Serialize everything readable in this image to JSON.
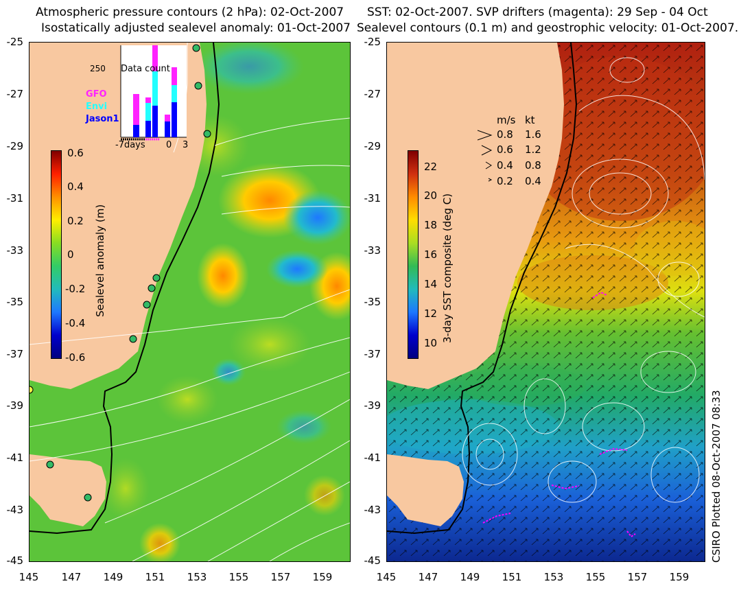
{
  "left_panel": {
    "title_line1": "Atmospheric pressure contours (2 hPa): 02-Oct-2007",
    "title_line2": "Isostatically adjusted sealevel anomaly: 01-Oct-2007",
    "colorbar_title": "Sealevel anomaly (m)",
    "colorbar_ticks": [
      "0.6",
      "0.4",
      "0.2",
      "0",
      "-0.2",
      "-0.4",
      "-0.6"
    ],
    "inset": {
      "title": "Data count",
      "max_label": "250",
      "x_labels": [
        "-7days",
        "0",
        "3"
      ],
      "legend": [
        {
          "label": "GFO",
          "color": "#ff22ff"
        },
        {
          "label": "Envi",
          "color": "#22ffff"
        },
        {
          "label": "Jason1",
          "color": "#0000ff"
        }
      ]
    }
  },
  "right_panel": {
    "title_line1": "SST: 02-Oct-2007. SVP drifters (magenta): 29 Sep - 04 Oct",
    "title_line2": "Sealevel contours (0.1 m) and geostrophic velocity: 01-Oct-2007.",
    "colorbar_title": "3-day SST composite (deg C)",
    "colorbar_ticks": [
      "22",
      "20",
      "18",
      "16",
      "14",
      "12",
      "10"
    ],
    "velocity_key": {
      "header_ms": "m/s",
      "header_kt": "kt",
      "rows": [
        {
          "ms": "0.8",
          "kt": "1.6"
        },
        {
          "ms": "0.6",
          "kt": "1.2"
        },
        {
          "ms": "0.4",
          "kt": "0.8"
        },
        {
          "ms": "0.2",
          "kt": "0.4"
        }
      ]
    }
  },
  "lat_ticks": [
    "-25",
    "-27",
    "-29",
    "-31",
    "-33",
    "-35",
    "-37",
    "-39",
    "-41",
    "-43",
    "-45"
  ],
  "lon_ticks": [
    "145",
    "147",
    "149",
    "151",
    "153",
    "155",
    "157",
    "159"
  ],
  "credit": "CSIRO Plotted 08-Oct-2007 08:33",
  "colors": {
    "land": "#f8c8a0",
    "sla_zero": "#66cc33",
    "sst_warm": "#b03010",
    "sst_cold": "#1030c0",
    "drifters": "#ff00ff"
  }
}
